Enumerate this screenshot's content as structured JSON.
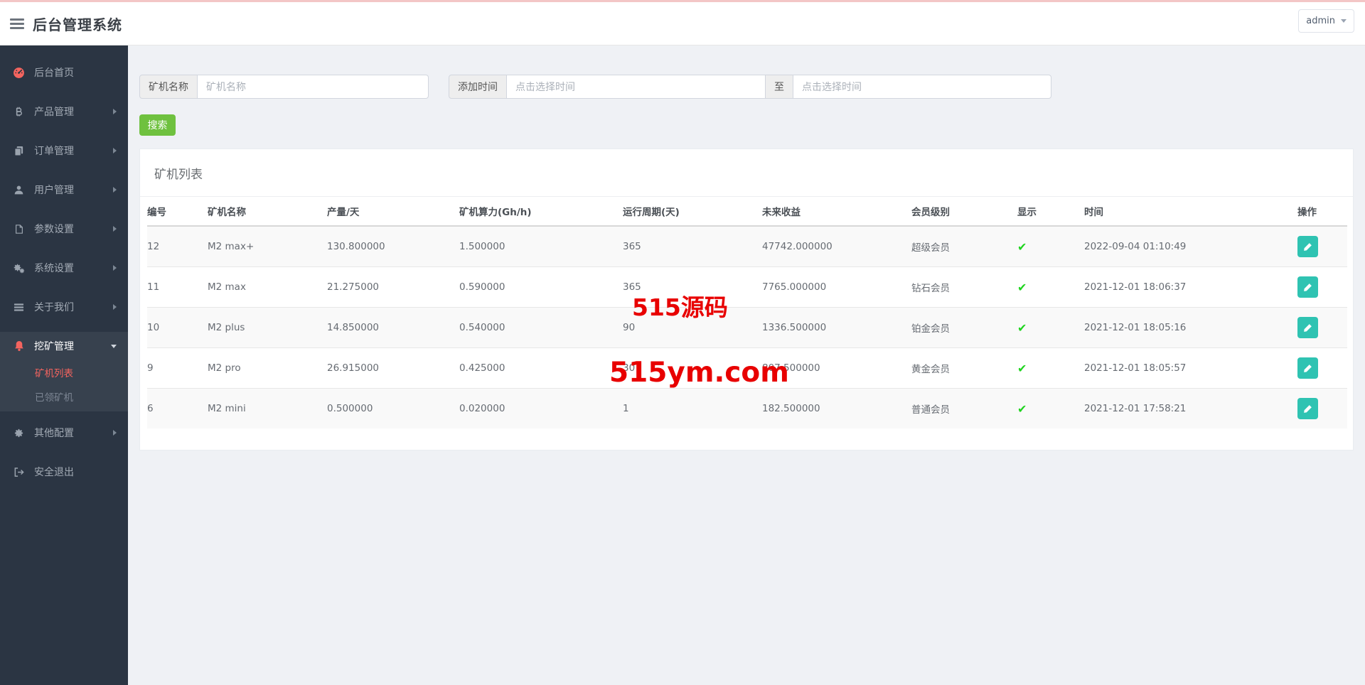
{
  "header": {
    "title": "后台管理系统",
    "user": {
      "label": "admin"
    }
  },
  "sidebar": {
    "items": [
      {
        "label": "后台首页",
        "icon": "dashboard-icon",
        "expandable": false
      },
      {
        "label": "产品管理",
        "icon": "bitcoin-icon",
        "expandable": true
      },
      {
        "label": "订单管理",
        "icon": "copy-icon",
        "expandable": true
      },
      {
        "label": "用户管理",
        "icon": "user-icon",
        "expandable": true
      },
      {
        "label": "参数设置",
        "icon": "file-icon",
        "expandable": true
      },
      {
        "label": "系统设置",
        "icon": "cogs-icon",
        "expandable": true
      },
      {
        "label": "关于我们",
        "icon": "list-icon",
        "expandable": true
      },
      {
        "label": "挖矿管理",
        "icon": "bell-icon",
        "expandable": true,
        "expanded": true,
        "active": true,
        "children": [
          {
            "label": "矿机列表",
            "active": true
          },
          {
            "label": "已领矿机",
            "active": false
          }
        ]
      },
      {
        "label": "其他配置",
        "icon": "gear-icon",
        "expandable": true
      },
      {
        "label": "安全退出",
        "icon": "signout-icon",
        "expandable": false
      }
    ]
  },
  "filters": {
    "name": {
      "label": "矿机名称",
      "placeholder": "矿机名称"
    },
    "time": {
      "label": "添加时间",
      "placeholder_from": "点击选择时间",
      "to_label": "至",
      "placeholder_to": "点击选择时间"
    },
    "search_label": "搜索"
  },
  "panel": {
    "title": "矿机列表"
  },
  "table": {
    "columns": [
      "编号",
      "矿机名称",
      "产量/天",
      "矿机算力(Gh/h)",
      "运行周期(天)",
      "未来收益",
      "会员级别",
      "显示",
      "时间",
      "操作"
    ],
    "rows": [
      {
        "id": "12",
        "name": "M2 max+",
        "output": "130.800000",
        "power": "1.500000",
        "cycle": "365",
        "income": "47742.000000",
        "level": "超级会员",
        "visible": true,
        "time": "2022-09-04 01:10:49"
      },
      {
        "id": "11",
        "name": "M2 max",
        "output": "21.275000",
        "power": "0.590000",
        "cycle": "365",
        "income": "7765.000000",
        "level": "钻石会员",
        "visible": true,
        "time": "2021-12-01 18:06:37"
      },
      {
        "id": "10",
        "name": "M2 plus",
        "output": "14.850000",
        "power": "0.540000",
        "cycle": "90",
        "income": "1336.500000",
        "level": "铂金会员",
        "visible": true,
        "time": "2021-12-01 18:05:16"
      },
      {
        "id": "9",
        "name": "M2 pro",
        "output": "26.915000",
        "power": "0.425000",
        "cycle": "30",
        "income": "807.500000",
        "level": "黄金会员",
        "visible": true,
        "time": "2021-12-01 18:05:57"
      },
      {
        "id": "6",
        "name": "M2 mini",
        "output": "0.500000",
        "power": "0.020000",
        "cycle": "1",
        "income": "182.500000",
        "level": "普通会员",
        "visible": true,
        "time": "2021-12-01 17:58:21"
      }
    ]
  },
  "watermark": {
    "line1": "515源码",
    "line2": "515ym.com",
    "color": "#e80000"
  },
  "colors": {
    "topline": "#f3c6c6",
    "sidebar_bg": "#2b3543",
    "sidebar_active_bg": "#37414e",
    "accent_red": "#f4645f",
    "search_green": "#6fc13f",
    "check_green": "#1fd41f",
    "edit_teal": "#2fc3b2",
    "page_bg": "#eff1f5"
  }
}
